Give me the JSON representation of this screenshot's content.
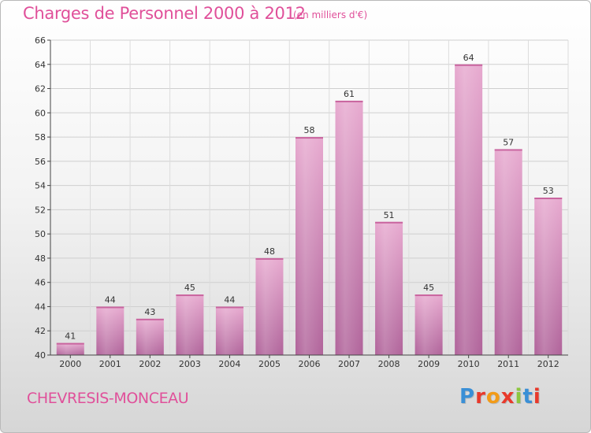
{
  "header": {
    "title": "Charges de Personnel 2000 à 2012",
    "subtitle": "(en milliers d'€)"
  },
  "footer": {
    "commune": "CHEVRESIS-MONCEAU",
    "logo_text": "Proxiti",
    "logo_colors": [
      "#3a8fd6",
      "#e8392b",
      "#f29b18",
      "#e8392b",
      "#8dc63f",
      "#3a8fd6",
      "#e8392b"
    ]
  },
  "colors": {
    "title": "#e0509a",
    "bar_light": "#e7a9cf",
    "bar_dark": "#b0639a"
  },
  "chart_data": {
    "type": "bar",
    "title": "Charges de Personnel 2000 à 2012",
    "subtitle": "(en milliers d'€)",
    "categories": [
      "2000",
      "2001",
      "2002",
      "2003",
      "2004",
      "2005",
      "2006",
      "2007",
      "2008",
      "2009",
      "2010",
      "2011",
      "2012"
    ],
    "values": [
      41,
      44,
      43,
      45,
      44,
      48,
      58,
      61,
      51,
      45,
      64,
      57,
      53
    ],
    "ylim": [
      40,
      66
    ],
    "yticks": [
      40,
      42,
      44,
      46,
      48,
      50,
      52,
      54,
      56,
      58,
      60,
      62,
      64,
      66
    ],
    "grid": true
  }
}
